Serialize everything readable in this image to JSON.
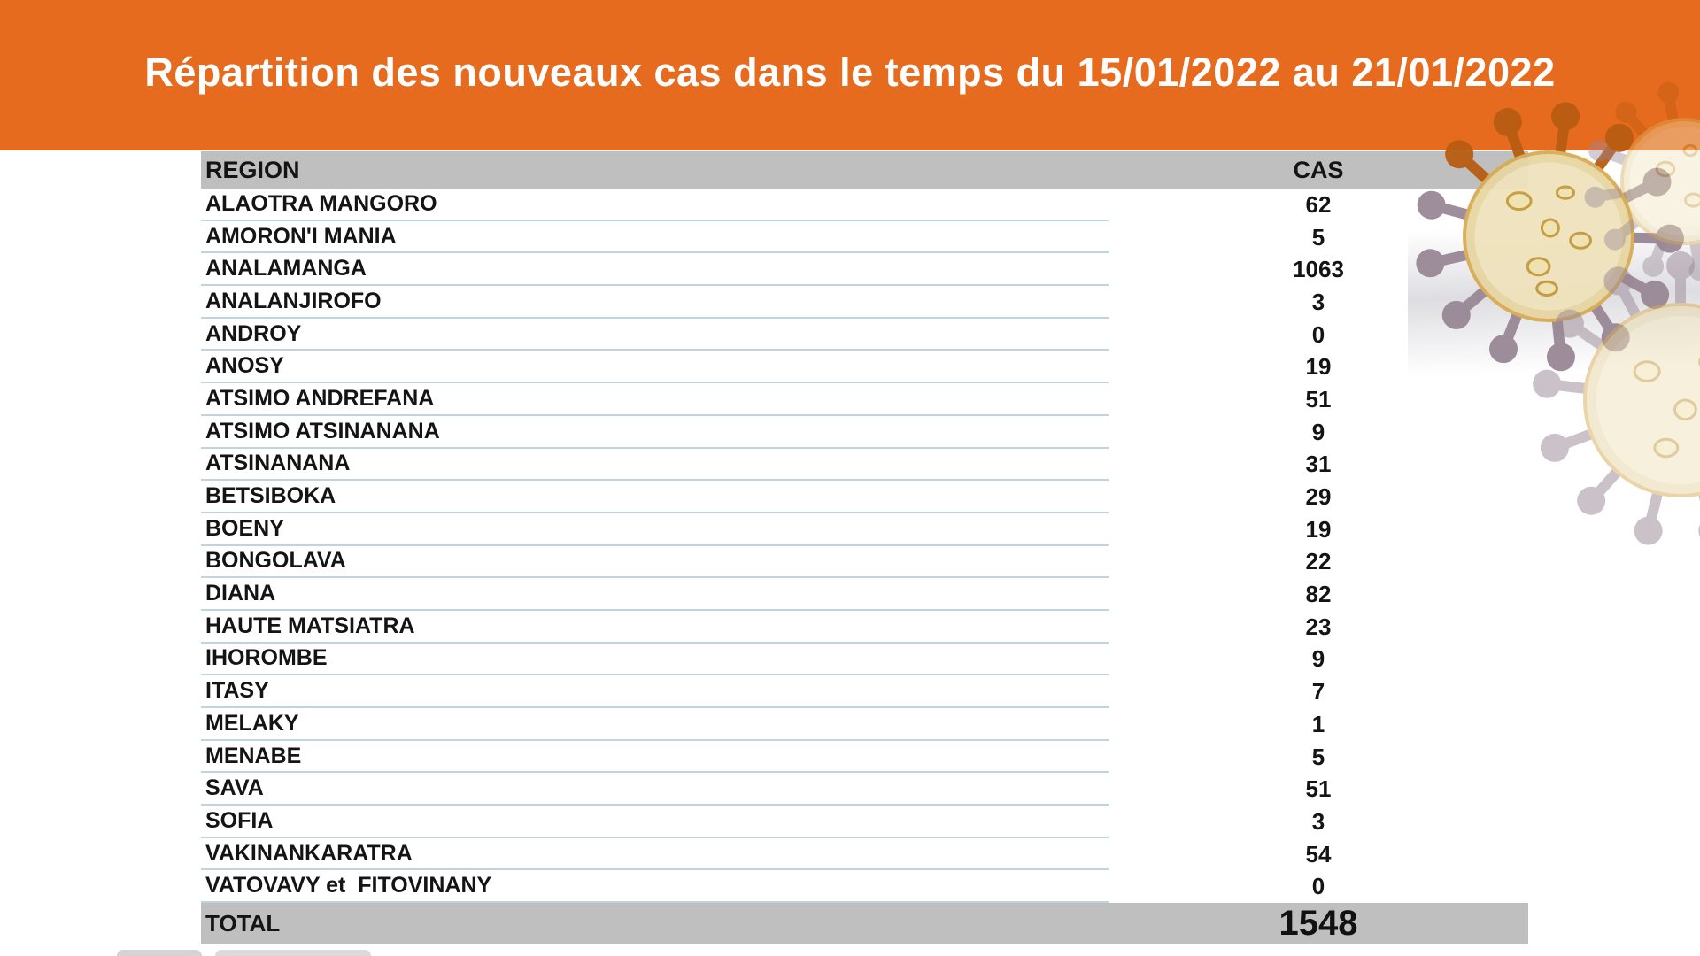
{
  "banner": {
    "title": "Répartition des nouveaux cas dans le temps du 15/01/2022 au 21/01/2022",
    "bg_color": "#e76b1e",
    "text_color": "#ffffff"
  },
  "table": {
    "header": {
      "region": "REGION",
      "cas": "CAS"
    },
    "header_bg_color": "#bfbfbf",
    "row_line_color": "#bfd3e2",
    "rows": [
      {
        "region": "ALAOTRA MANGORO",
        "cas": "62"
      },
      {
        "region": "AMORON'I MANIA",
        "cas": "5"
      },
      {
        "region": "ANALAMANGA",
        "cas": "1063"
      },
      {
        "region": "ANALANJIROFO",
        "cas": "3"
      },
      {
        "region": "ANDROY",
        "cas": "0"
      },
      {
        "region": "ANOSY",
        "cas": "19"
      },
      {
        "region": "ATSIMO ANDREFANA",
        "cas": "51"
      },
      {
        "region": "ATSIMO ATSINANANA",
        "cas": "9"
      },
      {
        "region": "ATSINANANA",
        "cas": "31"
      },
      {
        "region": "BETSIBOKA",
        "cas": "29"
      },
      {
        "region": "BOENY",
        "cas": "19"
      },
      {
        "region": "BONGOLAVA",
        "cas": "22"
      },
      {
        "region": "DIANA",
        "cas": "82"
      },
      {
        "region": "HAUTE MATSIATRA",
        "cas": "23"
      },
      {
        "region": "IHOROMBE",
        "cas": "9"
      },
      {
        "region": "ITASY",
        "cas": "7"
      },
      {
        "region": "MELAKY",
        "cas": "1"
      },
      {
        "region": "MENABE",
        "cas": "5"
      },
      {
        "region": "SAVA",
        "cas": "51"
      },
      {
        "region": "SOFIA",
        "cas": "3"
      },
      {
        "region": "VAKINANKARATRA",
        "cas": "54"
      },
      {
        "region": "VATOVAVY et  FITOVINANY",
        "cas": "0"
      }
    ],
    "total": {
      "label": "TOTAL",
      "value": "1548"
    }
  },
  "decor": {
    "artwork": "coronavirus-illustration",
    "palette": {
      "virus_body": "#e7d6a2",
      "virus_body_light": "#f2e7c4",
      "virus_rim": "#d8ab54",
      "virus_spike_orange": "#b85c12",
      "virus_spike_gray": "#998795",
      "virus_dot_fill": "#f0e2ae",
      "virus_dot_stroke": "#c3993c"
    }
  }
}
